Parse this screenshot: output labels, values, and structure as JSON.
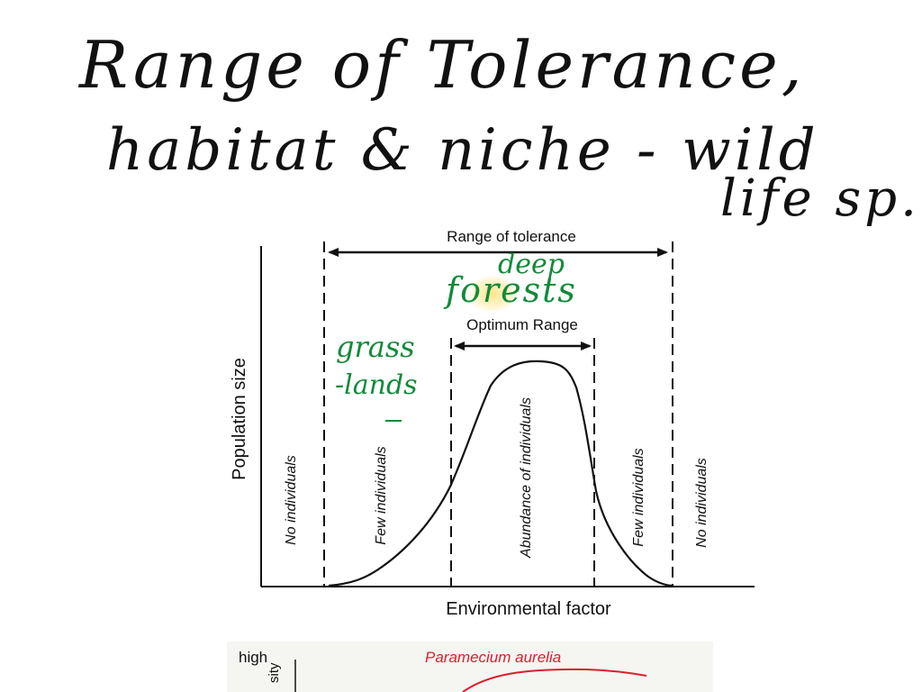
{
  "notes": {
    "title_line1": "Range of Tolerance,",
    "title_line2": "habitat & niche - wild",
    "title_line3": "life sp."
  },
  "annotations": {
    "deep": "deep",
    "forests": "forests",
    "grass": "grass",
    "lands": "-lands",
    "color": "#138a3a",
    "highlight_color": "#ffe178"
  },
  "diagram": {
    "range_label": "Range of tolerance",
    "optimum_label": "Optimum Range",
    "y_axis_label": "Population size",
    "x_axis_label": "Environmental factor",
    "zones": [
      "No individuals",
      "Few individuals",
      "Abundance of individuals",
      "Few individuals",
      "No individuals"
    ]
  },
  "second_figure": {
    "high_label": "high",
    "y_label_fragment": "sity",
    "species_label": "Paramecium aurelia",
    "species_color": "#d9202a"
  }
}
